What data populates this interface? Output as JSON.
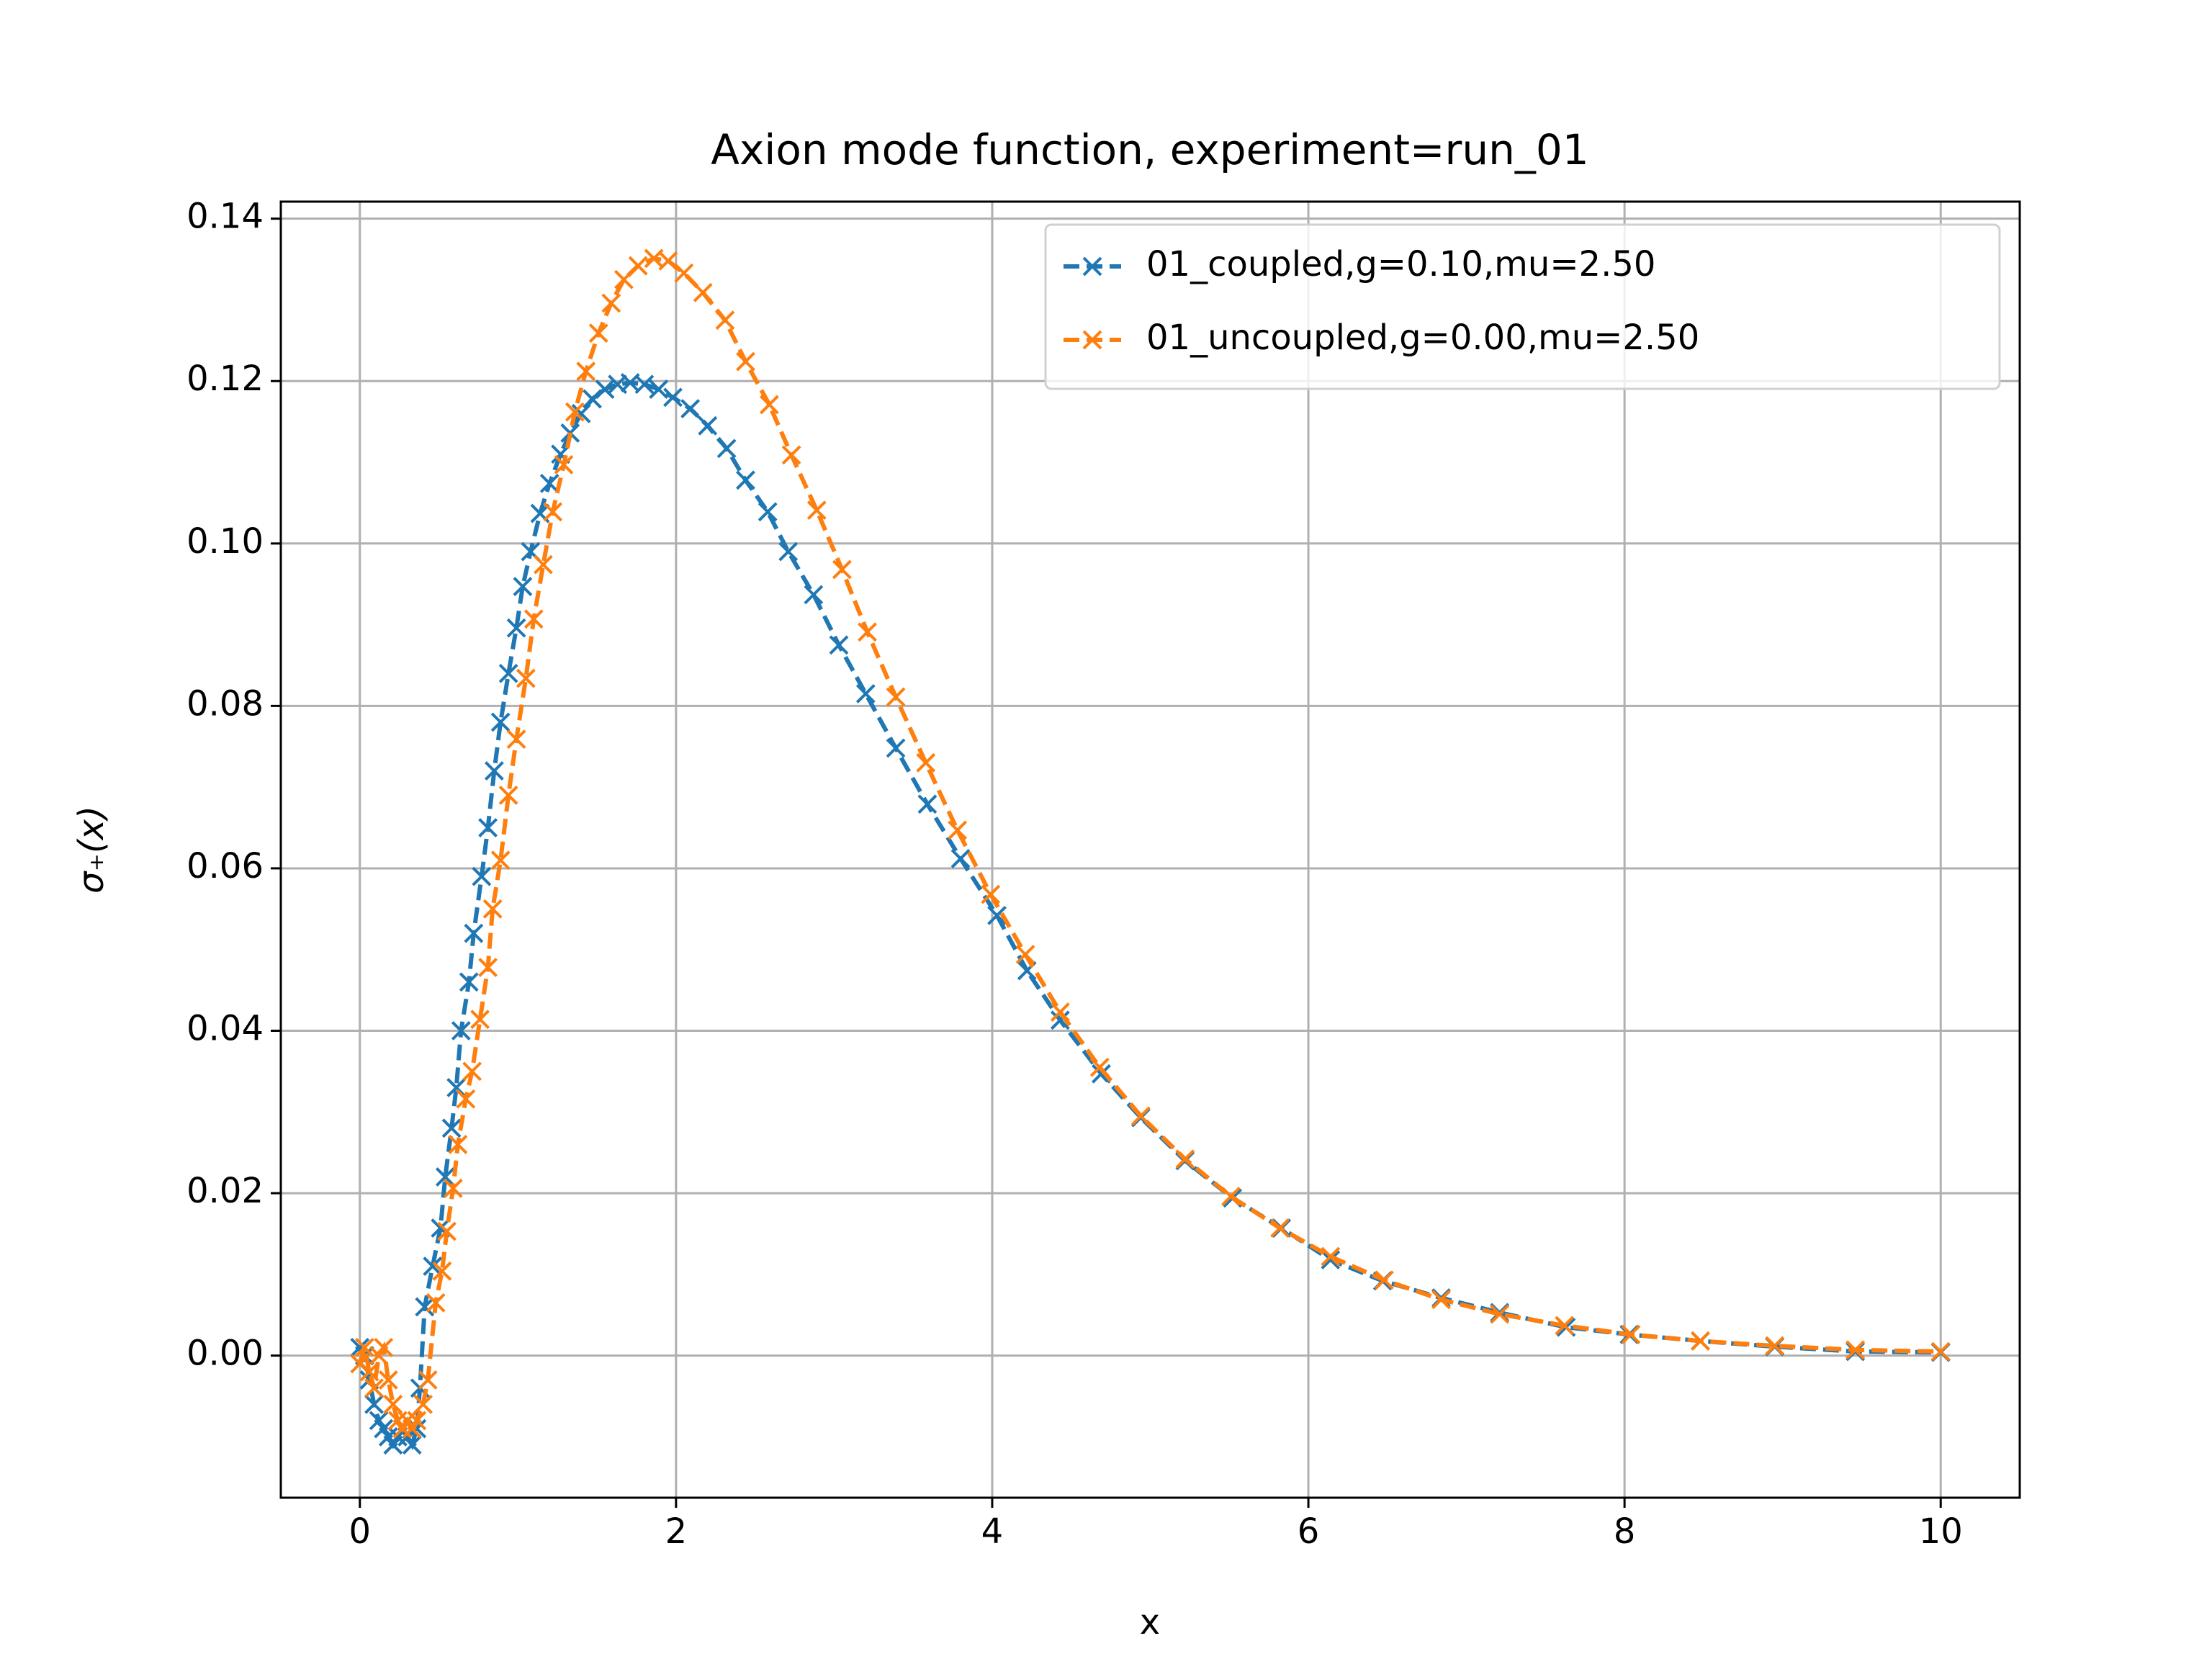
{
  "chart_data": {
    "type": "line",
    "title": "Axion mode function, experiment=run_01",
    "x_label": "x",
    "y_label": "σ₊(x)",
    "xlim": [
      -0.5,
      10.5
    ],
    "ylim": [
      -0.0175,
      0.1421
    ],
    "xticks": [
      0,
      2,
      4,
      6,
      8,
      10
    ],
    "yticks": [
      {
        "value": 0,
        "label": "0.00"
      },
      0.02,
      0.04,
      0.06,
      0.08,
      {
        "value": 0.1,
        "label": "0.10"
      },
      0.12,
      0.14
    ],
    "grid": true,
    "legend": "upper right",
    "series": [
      {
        "name": "01_coupled,g=0.10,mu=2.50",
        "color": "#1f77b4",
        "x": [
          0,
          0.03,
          0.06,
          0.09,
          0.12,
          0.15,
          0.18,
          0.21,
          0.24,
          0.27,
          0.3,
          0.33,
          0.36,
          0.38,
          0.41,
          0.46,
          0.51,
          0.54,
          0.58,
          0.61,
          0.64,
          0.69,
          0.72,
          0.77,
          0.81,
          0.85,
          0.89,
          0.94,
          0.99,
          1.03,
          1.08,
          1.14,
          1.2,
          1.27,
          1.33,
          1.4,
          1.47,
          1.55,
          1.63,
          1.71,
          1.8,
          1.89,
          1.98,
          2.09,
          2.2,
          2.32,
          2.44,
          2.58,
          2.71,
          2.87,
          3.03,
          3.2,
          3.39,
          3.59,
          3.8,
          4.03,
          4.22,
          4.43,
          4.69,
          4.94,
          5.22,
          5.52,
          5.83,
          6.14,
          6.47,
          6.84,
          7.21,
          7.63,
          8.03,
          8.48,
          8.95,
          9.46,
          10.0
        ],
        "values": [
          0.001,
          0.0,
          -0.003,
          -0.006,
          -0.008,
          -0.009,
          -0.01,
          -0.011,
          -0.01,
          -0.009,
          -0.01,
          -0.011,
          -0.009,
          -0.004,
          0.006,
          0.011,
          0.0157,
          0.022,
          0.028,
          0.033,
          0.04,
          0.046,
          0.052,
          0.059,
          0.065,
          0.072,
          0.078,
          0.084,
          0.0896,
          0.0947,
          0.099,
          0.1037,
          0.1074,
          0.111,
          0.1136,
          0.116,
          0.1178,
          0.119,
          0.1196,
          0.1198,
          0.1196,
          0.119,
          0.118,
          0.1166,
          0.1145,
          0.1117,
          0.1078,
          0.1039,
          0.099,
          0.0937,
          0.0875,
          0.0815,
          0.0748,
          0.0679,
          0.0612,
          0.0542,
          0.0474,
          0.0413,
          0.0347,
          0.0293,
          0.024,
          0.0194,
          0.0157,
          0.0118,
          0.0092,
          0.0071,
          0.0053,
          0.0035,
          0.0026,
          0.0018,
          0.0011,
          0.0005,
          0.0004
        ]
      },
      {
        "name": "01_uncoupled,g=0.00,mu=2.50",
        "color": "#ff7f0e",
        "x": [
          0,
          0.03,
          0.06,
          0.09,
          0.12,
          0.15,
          0.18,
          0.21,
          0.24,
          0.27,
          0.3,
          0.33,
          0.36,
          0.4,
          0.43,
          0.48,
          0.52,
          0.55,
          0.59,
          0.62,
          0.67,
          0.71,
          0.76,
          0.81,
          0.84,
          0.89,
          0.94,
          0.99,
          1.05,
          1.1,
          1.16,
          1.22,
          1.29,
          1.36,
          1.43,
          1.51,
          1.59,
          1.67,
          1.76,
          1.86,
          1.95,
          2.05,
          2.17,
          2.31,
          2.44,
          2.59,
          2.73,
          2.89,
          3.05,
          3.21,
          3.39,
          3.58,
          3.78,
          3.99,
          4.21,
          4.43,
          4.68,
          4.94,
          5.22,
          5.51,
          5.82,
          6.14,
          6.48,
          6.84,
          7.21,
          7.62,
          8.04,
          8.48,
          8.95,
          9.46,
          10.0
        ],
        "values": [
          -0.001,
          0.001,
          -0.002,
          -0.004,
          0.0,
          0.001,
          -0.003,
          -0.006,
          -0.008,
          -0.009,
          -0.008,
          -0.009,
          -0.008,
          -0.006,
          -0.003,
          0.0065,
          0.0104,
          0.0153,
          0.0206,
          0.026,
          0.0316,
          0.035,
          0.0414,
          0.0478,
          0.055,
          0.061,
          0.069,
          0.0759,
          0.0834,
          0.0907,
          0.0974,
          0.1039,
          0.1097,
          0.1162,
          0.1212,
          0.1259,
          0.1296,
          0.1325,
          0.1342,
          0.1351,
          0.1348,
          0.1333,
          0.1309,
          0.1275,
          0.1224,
          0.1171,
          0.1109,
          0.1041,
          0.0968,
          0.0891,
          0.0811,
          0.073,
          0.0647,
          0.0568,
          0.0494,
          0.0423,
          0.0355,
          0.0295,
          0.0242,
          0.0196,
          0.0157,
          0.0122,
          0.0093,
          0.0069,
          0.0051,
          0.0037,
          0.0026,
          0.0018,
          0.0012,
          0.0007,
          0.0005
        ]
      }
    ]
  }
}
